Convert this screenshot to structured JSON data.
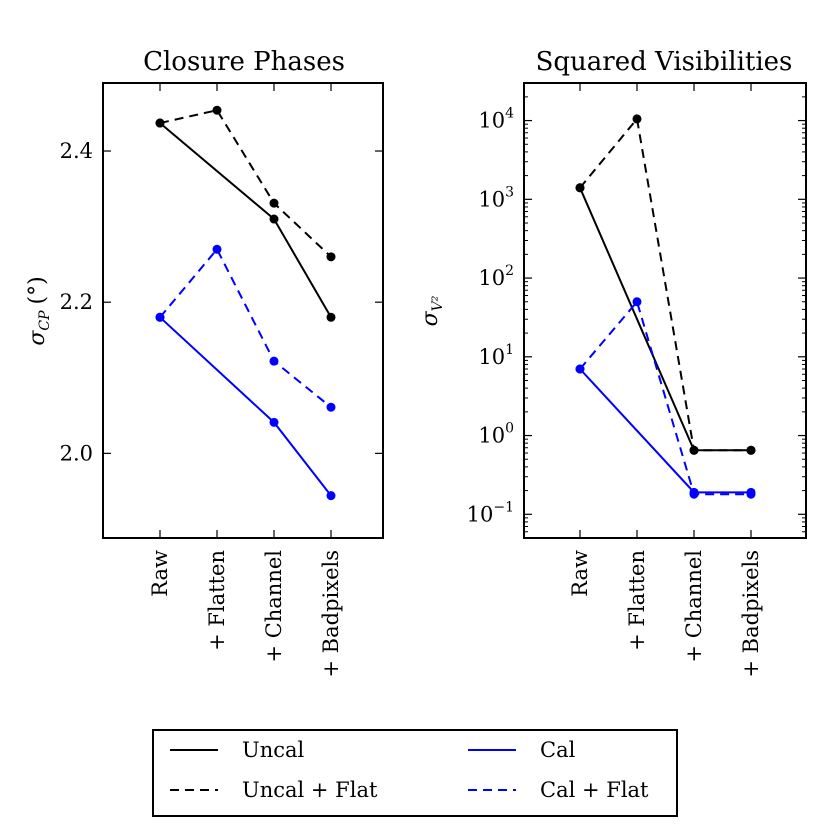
{
  "chart_data": [
    {
      "type": "line",
      "title": "Closure Phases",
      "ylabel": "σ_CP (°)",
      "ylabel_main": "σ",
      "ylabel_sub": "CP",
      "ylabel_unit": "(°)",
      "yscale": "linear",
      "ylim": [
        1.888,
        2.49
      ],
      "yticks": [
        2.0,
        2.2,
        2.4
      ],
      "ytick_labels": [
        "2.0",
        "2.2",
        "2.4"
      ],
      "categories": [
        "Raw",
        "+ Flatten",
        "+ Channel",
        "+ Badpixels"
      ],
      "series": [
        {
          "name": "Uncal",
          "color": "#000000",
          "dash": "solid",
          "values": [
            2.437,
            null,
            2.31,
            2.18
          ]
        },
        {
          "name": "Uncal + Flat",
          "color": "#000000",
          "dash": "dashed",
          "values": [
            2.437,
            2.454,
            2.331,
            2.26
          ]
        },
        {
          "name": "Cal",
          "color": "#0000ff",
          "dash": "solid",
          "values": [
            2.18,
            null,
            2.041,
            1.944
          ]
        },
        {
          "name": "Cal + Flat",
          "color": "#0000ff",
          "dash": "dashed",
          "values": [
            2.18,
            2.27,
            2.122,
            2.061
          ]
        }
      ]
    },
    {
      "type": "line",
      "title": "Squared Visibilities",
      "ylabel": "σ_V²",
      "ylabel_main": "σ",
      "ylabel_sub": "V²",
      "yscale": "log",
      "ylim": [
        0.05,
        30000
      ],
      "yticks": [
        0.1,
        1,
        10,
        100,
        1000,
        10000
      ],
      "ytick_labels": [
        {
          "base": "10",
          "exp": "−1"
        },
        {
          "base": "10",
          "exp": "0"
        },
        {
          "base": "10",
          "exp": "1"
        },
        {
          "base": "10",
          "exp": "2"
        },
        {
          "base": "10",
          "exp": "3"
        },
        {
          "base": "10",
          "exp": "4"
        }
      ],
      "categories": [
        "Raw",
        "+ Flatten",
        "+ Channel",
        "+ Badpixels"
      ],
      "series": [
        {
          "name": "Uncal",
          "color": "#000000",
          "dash": "solid",
          "values": [
            1400,
            null,
            0.65,
            0.65
          ]
        },
        {
          "name": "Uncal + Flat",
          "color": "#000000",
          "dash": "dashed",
          "values": [
            1400,
            10500,
            0.65,
            0.65
          ]
        },
        {
          "name": "Cal",
          "color": "#0000ff",
          "dash": "solid",
          "values": [
            7,
            null,
            0.19,
            0.19
          ]
        },
        {
          "name": "Cal + Flat",
          "color": "#0000ff",
          "dash": "dashed",
          "values": [
            7,
            50,
            0.18,
            0.18
          ]
        }
      ]
    }
  ],
  "legend": {
    "location": "bottom-center",
    "entries": [
      {
        "label": "Uncal",
        "color": "#000000",
        "dash": "solid"
      },
      {
        "label": "Uncal + Flat",
        "color": "#000000",
        "dash": "dashed"
      },
      {
        "label": "Cal",
        "color": "#0000ff",
        "dash": "solid"
      },
      {
        "label": "Cal + Flat",
        "color": "#0000ff",
        "dash": "dashed"
      }
    ]
  }
}
